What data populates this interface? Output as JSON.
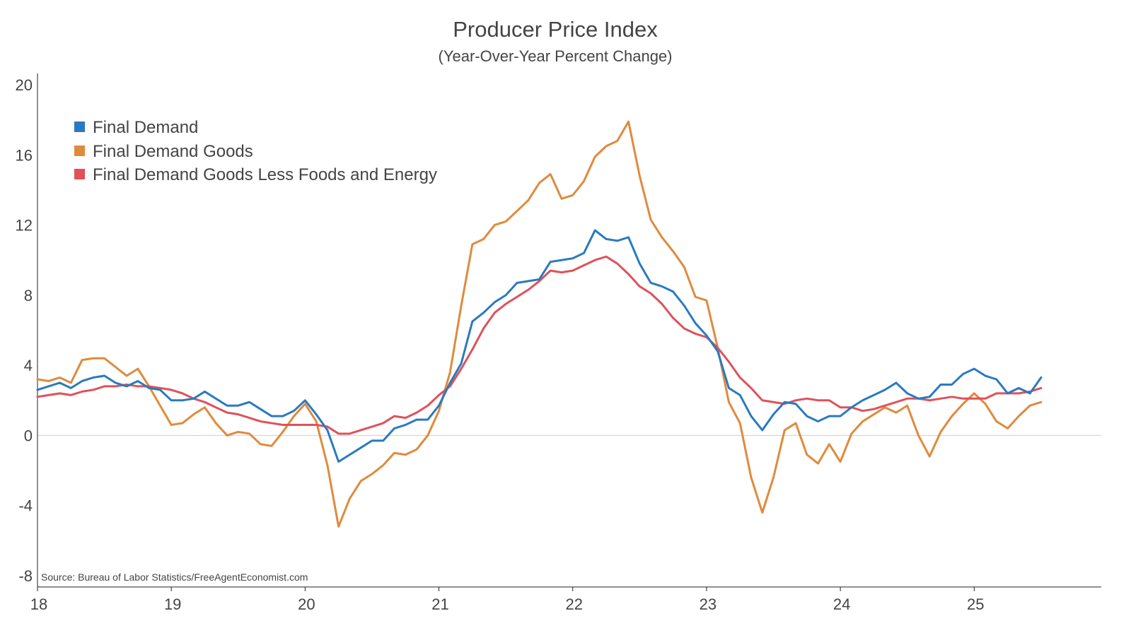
{
  "chart_data": {
    "type": "line",
    "title": "Producer Price Index",
    "subtitle": "(Year-Over-Year Percent Change)",
    "xlabel": "",
    "ylabel": "",
    "ylim": [
      -8,
      20
    ],
    "yticks": [
      20,
      16,
      12,
      8,
      4,
      0,
      -4,
      -8
    ],
    "ytick_labels": [
      "20",
      "16",
      "12",
      "8",
      "4",
      "0",
      "-4",
      "-8"
    ],
    "xlim": [
      2018.0,
      2025.95
    ],
    "xticks": [
      2018,
      2019,
      2020,
      2021,
      2022,
      2023,
      2024,
      2025
    ],
    "xtick_labels": [
      "18",
      "19",
      "20",
      "21",
      "22",
      "23",
      "24",
      "25"
    ],
    "legend_position": "top-left",
    "source": "Source: Bureau of Labor Statistics/FreeAgentEconomist.com",
    "start": 2018.0,
    "step_months": 1,
    "series": [
      {
        "name": "Final Demand",
        "color": "#2a7abf",
        "values": [
          2.6,
          2.8,
          3.0,
          2.7,
          3.1,
          3.3,
          3.4,
          3.0,
          2.8,
          3.1,
          2.7,
          2.6,
          2.0,
          2.0,
          2.1,
          2.5,
          2.1,
          1.7,
          1.7,
          1.9,
          1.5,
          1.1,
          1.1,
          1.4,
          2.0,
          1.2,
          0.3,
          -1.5,
          -1.1,
          -0.7,
          -0.3,
          -0.3,
          0.4,
          0.6,
          0.9,
          0.9,
          1.7,
          3.0,
          4.1,
          6.5,
          7.0,
          7.6,
          8.0,
          8.7,
          8.8,
          8.9,
          9.9,
          10.0,
          10.1,
          10.4,
          11.7,
          11.2,
          11.1,
          11.3,
          9.8,
          8.7,
          8.5,
          8.2,
          7.4,
          6.4,
          5.7,
          4.8,
          2.7,
          2.3,
          1.1,
          0.3,
          1.2,
          1.9,
          1.8,
          1.1,
          0.8,
          1.1,
          1.1,
          1.6,
          2.0,
          2.3,
          2.6,
          3.0,
          2.4,
          2.1,
          2.2,
          2.9,
          2.9,
          3.5,
          3.8,
          3.4,
          3.2,
          2.4,
          2.7,
          2.4,
          3.3
        ]
      },
      {
        "name": "Final Demand Goods",
        "color": "#e08a3c",
        "values": [
          3.2,
          3.1,
          3.3,
          3.0,
          4.3,
          4.4,
          4.4,
          3.9,
          3.4,
          3.8,
          2.8,
          1.7,
          0.6,
          0.7,
          1.2,
          1.6,
          0.7,
          0.0,
          0.2,
          0.1,
          -0.5,
          -0.6,
          0.2,
          1.1,
          1.8,
          0.8,
          -1.7,
          -5.2,
          -3.6,
          -2.6,
          -2.2,
          -1.7,
          -1.0,
          -1.1,
          -0.8,
          0.0,
          1.4,
          3.6,
          7.4,
          10.9,
          11.2,
          12.0,
          12.2,
          12.8,
          13.4,
          14.4,
          14.9,
          13.5,
          13.7,
          14.5,
          15.9,
          16.5,
          16.8,
          17.9,
          14.8,
          12.3,
          11.3,
          10.5,
          9.6,
          7.9,
          7.7,
          5.0,
          1.9,
          0.7,
          -2.4,
          -4.4,
          -2.4,
          0.3,
          0.7,
          -1.1,
          -1.6,
          -0.5,
          -1.5,
          0.1,
          0.8,
          1.2,
          1.6,
          1.3,
          1.7,
          0.0,
          -1.2,
          0.2,
          1.1,
          1.8,
          2.4,
          1.8,
          0.8,
          0.4,
          1.1,
          1.7,
          1.9
        ]
      },
      {
        "name": "Final Demand Goods Less Foods and Energy",
        "color": "#e0515a",
        "values": [
          2.2,
          2.3,
          2.4,
          2.3,
          2.5,
          2.6,
          2.8,
          2.8,
          2.9,
          2.8,
          2.8,
          2.7,
          2.6,
          2.4,
          2.1,
          1.9,
          1.6,
          1.3,
          1.2,
          1.0,
          0.8,
          0.7,
          0.6,
          0.6,
          0.6,
          0.6,
          0.5,
          0.1,
          0.1,
          0.3,
          0.5,
          0.7,
          1.1,
          1.0,
          1.3,
          1.7,
          2.3,
          2.8,
          3.8,
          4.9,
          6.1,
          7.0,
          7.5,
          7.9,
          8.3,
          8.8,
          9.4,
          9.3,
          9.4,
          9.7,
          10.0,
          10.2,
          9.8,
          9.2,
          8.5,
          8.1,
          7.5,
          6.7,
          6.1,
          5.8,
          5.6,
          5.0,
          4.2,
          3.3,
          2.7,
          2.0,
          1.9,
          1.8,
          2.0,
          2.1,
          2.0,
          2.0,
          1.6,
          1.6,
          1.4,
          1.5,
          1.7,
          1.9,
          2.1,
          2.1,
          2.0,
          2.1,
          2.2,
          2.1,
          2.1,
          2.1,
          2.4,
          2.4,
          2.4,
          2.5,
          2.7
        ]
      }
    ]
  }
}
